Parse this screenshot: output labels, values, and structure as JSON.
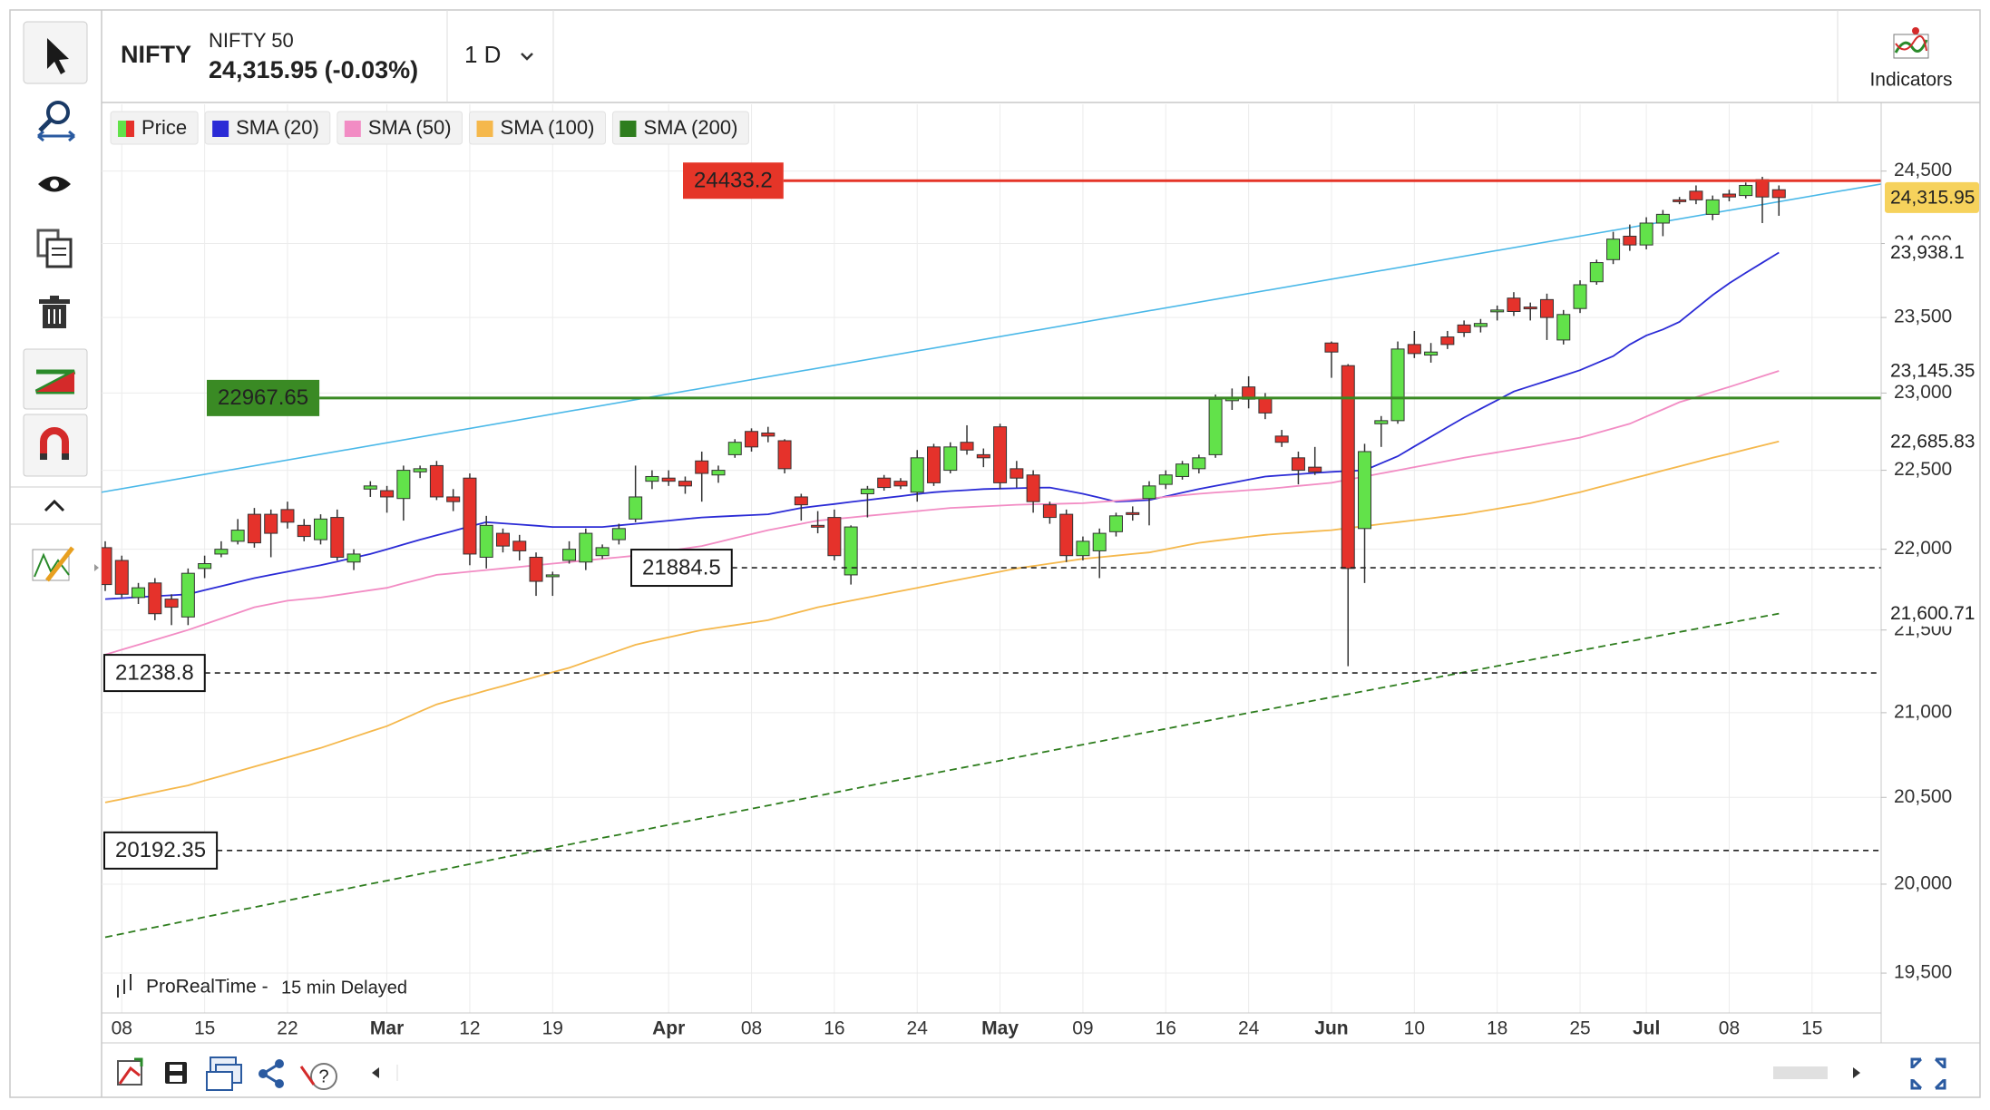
{
  "header": {
    "symbol": "NIFTY",
    "name": "NIFTY 50",
    "quote": "24,315.95 (-0.03%)",
    "interval": "1 D",
    "indicators": "Indicators"
  },
  "footer": {
    "source": "ProRealTime -",
    "delay": "15 min Delayed"
  },
  "chart_data": {
    "type": "candlestick",
    "name": "Price",
    "up_color": "#62e24a",
    "down_color": "#e5322b",
    "last_label": "24,315.95",
    "log": true,
    "grid": true,
    "categories": [
      null,
      "08",
      null,
      null,
      null,
      null,
      "15",
      null,
      null,
      null,
      null,
      "22",
      null,
      null,
      null,
      null,
      null,
      "Mar",
      null,
      null,
      null,
      null,
      "12",
      null,
      null,
      null,
      null,
      "19",
      null,
      null,
      null,
      null,
      null,
      null,
      "Apr",
      null,
      null,
      null,
      null,
      "08",
      null,
      null,
      null,
      null,
      "16",
      null,
      null,
      null,
      null,
      "24",
      null,
      null,
      null,
      null,
      "May",
      null,
      null,
      null,
      null,
      "09",
      null,
      null,
      null,
      null,
      "16",
      null,
      null,
      null,
      null,
      "24",
      null,
      null,
      null,
      null,
      "Jun",
      null,
      null,
      null,
      null,
      "10",
      null,
      null,
      null,
      null,
      "18",
      null,
      null,
      null,
      null,
      "25",
      null,
      null,
      null,
      "Jul",
      null,
      null,
      null,
      null,
      "08",
      null,
      null,
      null,
      null,
      "15"
    ],
    "open": [
      22010,
      21930,
      21700,
      21790,
      21690,
      21580,
      21880,
      21970,
      22050,
      22220,
      22220,
      22250,
      22150,
      22060,
      22200,
      21920,
      22380,
      22370,
      22320,
      22490,
      22530,
      22330,
      22450,
      21950,
      22100,
      22050,
      21950,
      21830,
      21930,
      21920,
      21960,
      22060,
      22190,
      22430,
      22450,
      22430,
      22560,
      22470,
      22600,
      22750,
      22740,
      22690,
      22330,
      22150,
      22200,
      21840,
      22350,
      22450,
      22430,
      22360,
      22650,
      22500,
      22680,
      22600,
      22780,
      22510,
      22470,
      22280,
      22220,
      21960,
      21990,
      22110,
      22230,
      22320,
      22410,
      22460,
      22510,
      22600,
      22950,
      23040,
      22970,
      22720,
      22580,
      22520,
      23330,
      23180,
      22130,
      22800,
      22820,
      23320,
      23250,
      23370,
      23450,
      23440,
      23540,
      23630,
      23570,
      23620,
      23350,
      23560,
      23740,
      23890,
      24050,
      23990,
      24140,
      24300,
      24360,
      24200,
      24340,
      24330,
      24440,
      24370,
      null,
      null
    ],
    "high": [
      22050,
      21960,
      21790,
      21820,
      21720,
      21880,
      21960,
      22050,
      22190,
      22260,
      22250,
      22300,
      22190,
      22220,
      22250,
      22000,
      22430,
      22400,
      22530,
      22530,
      22560,
      22380,
      22480,
      22210,
      22130,
      22090,
      21980,
      21860,
      22050,
      22130,
      22030,
      22160,
      22530,
      22500,
      22500,
      22460,
      22620,
      22530,
      22700,
      22770,
      22780,
      22700,
      22350,
      22240,
      22250,
      22150,
      22400,
      22470,
      22450,
      22630,
      22670,
      22680,
      22790,
      22640,
      22800,
      22560,
      22500,
      22300,
      22250,
      22080,
      22130,
      22230,
      22270,
      22430,
      22500,
      22560,
      22600,
      22990,
      23030,
      23110,
      23000,
      22760,
      22620,
      22650,
      23340,
      23190,
      22670,
      22850,
      23340,
      23410,
      23330,
      23410,
      23480,
      23490,
      23580,
      23670,
      23600,
      23660,
      23550,
      23750,
      23890,
      24080,
      24130,
      24180,
      24230,
      24320,
      24400,
      24330,
      24370,
      24420,
      24460,
      24400,
      null,
      null
    ],
    "low": [
      21740,
      21700,
      21660,
      21560,
      21530,
      21530,
      21820,
      21950,
      22030,
      22010,
      21950,
      22130,
      22050,
      22030,
      21930,
      21870,
      22330,
      22230,
      22180,
      22450,
      22310,
      22240,
      21900,
      21880,
      21980,
      21930,
      21710,
      21710,
      21910,
      21870,
      21940,
      22030,
      22170,
      22380,
      22400,
      22350,
      22300,
      22420,
      22580,
      22620,
      22680,
      22480,
      22180,
      22100,
      21930,
      21780,
      22200,
      22370,
      22380,
      22300,
      22400,
      22480,
      22600,
      22520,
      22380,
      22390,
      22230,
      22160,
      21920,
      21930,
      21820,
      22080,
      22180,
      22150,
      22380,
      22440,
      22480,
      22580,
      22890,
      22900,
      22830,
      22650,
      22410,
      22470,
      23100,
      21280,
      21790,
      22650,
      22800,
      23230,
      23200,
      23290,
      23370,
      23400,
      23480,
      23510,
      23480,
      23350,
      23320,
      23530,
      23720,
      23860,
      23950,
      23960,
      24050,
      24270,
      24270,
      24160,
      24290,
      24310,
      24140,
      24190,
      null,
      null
    ],
    "close": [
      21780,
      21720,
      21760,
      21600,
      21640,
      21850,
      21910,
      22000,
      22120,
      22040,
      22100,
      22170,
      22080,
      22190,
      21950,
      21970,
      22400,
      22330,
      22500,
      22510,
      22330,
      22300,
      21970,
      22150,
      22020,
      21990,
      21800,
      21840,
      22000,
      22100,
      22010,
      22130,
      22330,
      22460,
      22430,
      22400,
      22480,
      22500,
      22680,
      22650,
      22720,
      22510,
      22280,
      22140,
      21960,
      22140,
      22380,
      22390,
      22400,
      22580,
      22420,
      22650,
      22630,
      22580,
      22420,
      22450,
      22300,
      22200,
      21960,
      22050,
      22100,
      22210,
      22220,
      22400,
      22470,
      22540,
      22580,
      22960,
      22970,
      22960,
      22870,
      22680,
      22500,
      22490,
      23270,
      21880,
      22620,
      22820,
      23290,
      23260,
      23270,
      23320,
      23400,
      23460,
      23550,
      23540,
      23560,
      23500,
      23520,
      23720,
      23870,
      24030,
      23990,
      24140,
      24200,
      24290,
      24300,
      24300,
      24320,
      24400,
      24320,
      24315.95,
      null,
      null
    ],
    "series": [
      {
        "name": "SMA (20)",
        "color": "#2b2bd6",
        "dashed": false,
        "last_label": "23,938.1",
        "values": [
          21690,
          21696,
          21702,
          21708,
          21714,
          21720,
          21745,
          21770,
          21795,
          21820,
          21840,
          21860,
          21880,
          21900,
          21923,
          21947,
          21970,
          22000,
          22030,
          22060,
          22088,
          22115,
          22143,
          22170,
          22163,
          22155,
          22148,
          22140,
          22140,
          22140,
          22140,
          22150,
          22160,
          22170,
          22180,
          22190,
          22200,
          22205,
          22210,
          22215,
          22220,
          22240,
          22260,
          22273,
          22285,
          22298,
          22310,
          22323,
          22335,
          22348,
          22360,
          22367,
          22373,
          22380,
          22383,
          22385,
          22388,
          22390,
          22370,
          22350,
          22325,
          22300,
          22305,
          22310,
          22333,
          22357,
          22380,
          22400,
          22420,
          22440,
          22460,
          22468,
          22475,
          22483,
          22490,
          22495,
          22500,
          22545,
          22590,
          22653,
          22715,
          22778,
          22840,
          22897,
          22953,
          23010,
          23045,
          23080,
          23115,
          23150,
          23197,
          23243,
          23320,
          23380,
          23420,
          23470,
          23560,
          23650,
          23730,
          23800,
          23869,
          23938.1,
          null,
          null
        ]
      },
      {
        "name": "SMA (50)",
        "color": "#f28cc4",
        "dashed": false,
        "last_label": "23,145.35",
        "values": [
          21350,
          21380,
          21410,
          21440,
          21470,
          21500,
          21535,
          21570,
          21605,
          21640,
          21660,
          21680,
          21690,
          21700,
          21715,
          21730,
          21745,
          21760,
          21787,
          21813,
          21840,
          21850,
          21860,
          21870,
          21880,
          21890,
          21900,
          21910,
          21920,
          21930,
          21940,
          21950,
          21960,
          21975,
          21990,
          22005,
          22020,
          22045,
          22070,
          22095,
          22120,
          22140,
          22160,
          22180,
          22190,
          22200,
          22210,
          22220,
          22230,
          22240,
          22250,
          22260,
          22265,
          22270,
          22275,
          22280,
          22283,
          22285,
          22288,
          22290,
          22298,
          22305,
          22313,
          22320,
          22330,
          22340,
          22350,
          22358,
          22365,
          22373,
          22380,
          22390,
          22400,
          22410,
          22420,
          22440,
          22460,
          22480,
          22500,
          22520,
          22540,
          22560,
          22580,
          22598,
          22615,
          22633,
          22650,
          22670,
          22690,
          22710,
          22740,
          22770,
          22800,
          22847,
          22893,
          22940,
          22973,
          23007,
          23040,
          23075,
          23110,
          23145.35,
          null,
          null
        ]
      },
      {
        "name": "SMA (100)",
        "color": "#f5b84c",
        "dashed": false,
        "last_label": "22,685.83",
        "values": [
          20470,
          20490,
          20510,
          20530,
          20550,
          20570,
          20598,
          20625,
          20653,
          20680,
          20708,
          20735,
          20763,
          20790,
          20823,
          20855,
          20888,
          20920,
          20963,
          21007,
          21050,
          21078,
          21105,
          21133,
          21160,
          21188,
          21215,
          21243,
          21270,
          21305,
          21340,
          21375,
          21410,
          21433,
          21455,
          21478,
          21500,
          21515,
          21530,
          21545,
          21560,
          21587,
          21613,
          21640,
          21660,
          21680,
          21700,
          21720,
          21740,
          21760,
          21780,
          21800,
          21820,
          21840,
          21860,
          21880,
          21895,
          21910,
          21925,
          21940,
          21950,
          21960,
          21970,
          21980,
          22000,
          22020,
          22040,
          22053,
          22065,
          22078,
          22090,
          22098,
          22105,
          22113,
          22120,
          22133,
          22145,
          22158,
          22170,
          22183,
          22195,
          22208,
          22220,
          22238,
          22255,
          22273,
          22290,
          22313,
          22337,
          22360,
          22388,
          22415,
          22443,
          22470,
          22498,
          22525,
          22553,
          22580,
          22606,
          22633,
          22659,
          22685.83,
          null,
          null
        ]
      },
      {
        "name": "SMA (200)",
        "color": "#2e7d1e",
        "dashed": true,
        "last_label": "21,600.71",
        "values": [
          19700,
          19719,
          19738,
          19756,
          19775,
          19794,
          19813,
          19832,
          19851,
          19869,
          19888,
          19907,
          19926,
          19945,
          19963,
          19982,
          20001,
          20020,
          20039,
          20058,
          20076,
          20095,
          20114,
          20133,
          20152,
          20171,
          20189,
          20208,
          20227,
          20246,
          20265,
          20283,
          20302,
          20321,
          20340,
          20359,
          20378,
          20396,
          20415,
          20434,
          20453,
          20472,
          20490,
          20509,
          20528,
          20547,
          20566,
          20585,
          20603,
          20622,
          20641,
          20660,
          20679,
          20697,
          20716,
          20735,
          20754,
          20773,
          20792,
          20810,
          20829,
          20848,
          20867,
          20886,
          20904,
          20923,
          20942,
          20961,
          20980,
          20999,
          21017,
          21036,
          21055,
          21074,
          21093,
          21111,
          21130,
          21149,
          21168,
          21187,
          21206,
          21224,
          21243,
          21262,
          21281,
          21300,
          21318,
          21337,
          21356,
          21375,
          21394,
          21413,
          21431,
          21450,
          21469,
          21488,
          21507,
          21526,
          21544,
          21563,
          21582,
          21600.71,
          null,
          null
        ]
      }
    ],
    "hlines": [
      {
        "value": 24433.2,
        "color": "#e53528",
        "style": "solid"
      },
      {
        "value": 22967.65,
        "color": "#3a8a24",
        "style": "solid"
      },
      {
        "value": 21884.5,
        "color": "#222222",
        "style": "dashed"
      },
      {
        "value": 21238.8,
        "color": "#222222",
        "style": "dashed"
      },
      {
        "value": 20192.35,
        "color": "#222222",
        "style": "dashed"
      }
    ],
    "trendline": {
      "values": [
        22360,
        24410
      ],
      "color": "#4ab8e8"
    },
    "ylim": [
      19280,
      24970
    ],
    "yticks": [
      {
        "value": 19500,
        "label": "19,500"
      },
      {
        "value": 20000,
        "label": "20,000"
      },
      {
        "value": 20500,
        "label": "20,500"
      },
      {
        "value": 21000,
        "label": "21,000"
      },
      {
        "value": 21500,
        "label": "21,500"
      },
      {
        "value": 22000,
        "label": "22,000"
      },
      {
        "value": 22500,
        "label": "22,500"
      },
      {
        "value": 23000,
        "label": "23,000"
      },
      {
        "value": 23500,
        "label": "23,500"
      },
      {
        "value": 24000,
        "label": "24,000"
      },
      {
        "value": 24500,
        "label": "24,500"
      }
    ]
  }
}
